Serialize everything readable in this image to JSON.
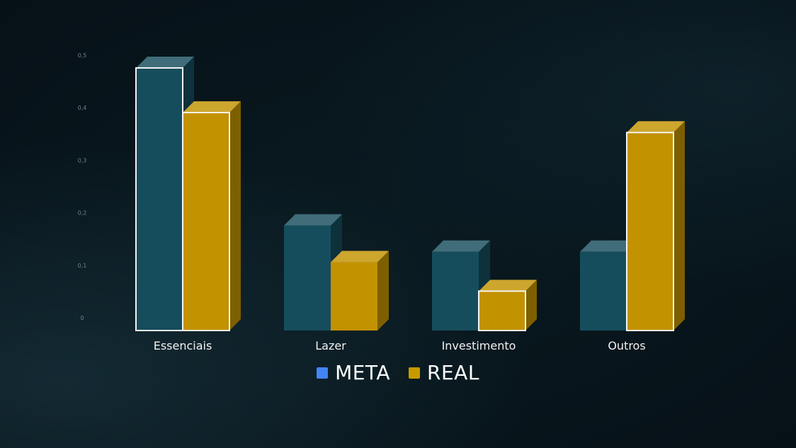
{
  "chart_data": {
    "type": "bar",
    "style": "3d-clustered-column",
    "categories": [
      "Essenciais",
      "Lazer",
      "Investimento",
      "Outros"
    ],
    "series": [
      {
        "name": "META",
        "values": [
          0.5,
          0.2,
          0.15,
          0.15
        ],
        "legend_color": "#4285f4",
        "bar_color": "#164d5c"
      },
      {
        "name": "REAL",
        "values": [
          0.415,
          0.13,
          0.075,
          0.377
        ],
        "legend_color": "#c89a00",
        "bar_color": "#c29200"
      }
    ],
    "yticks": [
      "0",
      "0,1",
      "0,2",
      "0,3",
      "0,4",
      "0,5"
    ],
    "ylim": [
      0,
      0.5
    ],
    "grid": false,
    "legend_position": "bottom",
    "outlined_bars": {
      "META": [
        0
      ],
      "REAL": [
        0,
        2,
        3
      ]
    }
  }
}
